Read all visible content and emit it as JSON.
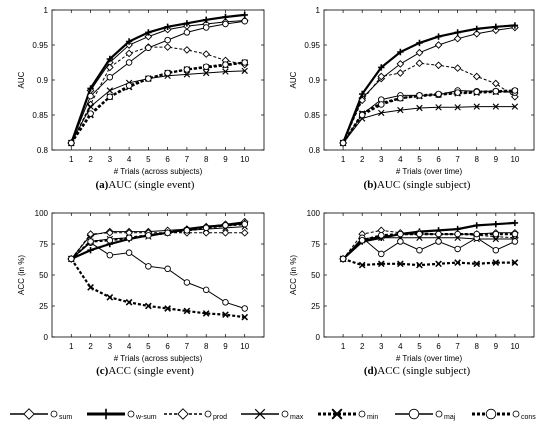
{
  "panels_captions": [
    {
      "letter": "(a)",
      "text": "AUC (single event)"
    },
    {
      "letter": "(b)",
      "text": "AUC (single subject)"
    },
    {
      "letter": "(c)",
      "text": "ACC (single event)"
    },
    {
      "letter": "(d)",
      "text": "ACC (single subject)"
    }
  ],
  "legend": [
    {
      "label": "sum",
      "style": "thin",
      "marker": "diamond"
    },
    {
      "label": "w-sum",
      "style": "thick",
      "marker": "plus"
    },
    {
      "label": "prod",
      "style": "dashed",
      "marker": "diamond"
    },
    {
      "label": "max",
      "style": "thin",
      "marker": "x"
    },
    {
      "label": "min",
      "style": "thick-dashed",
      "marker": "x"
    },
    {
      "label": "maj",
      "style": "thin",
      "marker": "circle"
    },
    {
      "label": "cons",
      "style": "thick-dashed",
      "marker": "circle"
    }
  ],
  "chart_data": [
    {
      "type": "line",
      "xlabel": "# Trials (across subjects)",
      "ylabel": "AUC",
      "x": [
        1,
        2,
        3,
        4,
        5,
        6,
        7,
        8,
        9,
        10
      ],
      "xlim": [
        0,
        11
      ],
      "ylim": [
        0.8,
        1.0
      ],
      "xticks": [
        1,
        2,
        3,
        4,
        5,
        6,
        7,
        8,
        9,
        10
      ],
      "yticks": [
        0.8,
        0.85,
        0.9,
        0.95,
        1
      ],
      "ytick_labels": [
        "0.8",
        "0.85",
        "0.9",
        "0.95",
        "1"
      ],
      "series": [
        {
          "name": "sum",
          "values": [
            0.81,
            0.885,
            0.925,
            0.95,
            0.962,
            0.972,
            0.977,
            0.98,
            0.983,
            0.985
          ]
        },
        {
          "name": "w-sum",
          "values": [
            0.81,
            0.888,
            0.93,
            0.955,
            0.968,
            0.976,
            0.981,
            0.986,
            0.99,
            0.993
          ]
        },
        {
          "name": "prod",
          "values": [
            0.81,
            0.865,
            0.918,
            0.938,
            0.947,
            0.947,
            0.943,
            0.937,
            0.928,
            0.922
          ]
        },
        {
          "name": "max",
          "values": [
            0.81,
            0.862,
            0.885,
            0.896,
            0.902,
            0.906,
            0.908,
            0.91,
            0.912,
            0.913
          ]
        },
        {
          "name": "min",
          "values": [
            0.81,
            0.85,
            0.876,
            0.89,
            0.902,
            0.91,
            0.915,
            0.918,
            0.921,
            0.925
          ]
        },
        {
          "name": "maj",
          "values": [
            0.81,
            0.877,
            0.904,
            0.925,
            0.946,
            0.957,
            0.968,
            0.975,
            0.98,
            0.984
          ]
        },
        {
          "name": "cons",
          "values": [
            0.81,
            0.852,
            0.876,
            0.892,
            0.902,
            0.91,
            0.915,
            0.919,
            0.922,
            0.925
          ]
        }
      ]
    },
    {
      "type": "line",
      "xlabel": "# Trials (over time)",
      "ylabel": "AUC",
      "x": [
        1,
        2,
        3,
        4,
        5,
        6,
        7,
        8,
        9,
        10
      ],
      "xlim": [
        0,
        11
      ],
      "ylim": [
        0.8,
        1.0
      ],
      "xticks": [
        1,
        2,
        3,
        4,
        5,
        6,
        7,
        8,
        9,
        10
      ],
      "yticks": [
        0.8,
        0.85,
        0.9,
        0.95,
        1
      ],
      "ytick_labels": [
        "0.8",
        "0.85",
        "0.9",
        "0.95",
        "1"
      ],
      "series": [
        {
          "name": "sum",
          "values": [
            0.81,
            0.874,
            0.902,
            0.923,
            0.939,
            0.95,
            0.959,
            0.966,
            0.971,
            0.975
          ]
        },
        {
          "name": "w-sum",
          "values": [
            0.81,
            0.88,
            0.918,
            0.94,
            0.953,
            0.962,
            0.968,
            0.973,
            0.976,
            0.978
          ]
        },
        {
          "name": "prod",
          "values": [
            0.81,
            0.871,
            0.905,
            0.91,
            0.924,
            0.921,
            0.917,
            0.905,
            0.895,
            0.876
          ]
        },
        {
          "name": "max",
          "values": [
            0.81,
            0.845,
            0.853,
            0.857,
            0.86,
            0.861,
            0.861,
            0.862,
            0.862,
            0.862
          ]
        },
        {
          "name": "min",
          "values": [
            0.81,
            0.852,
            0.867,
            0.874,
            0.877,
            0.879,
            0.881,
            0.882,
            0.883,
            0.884
          ]
        },
        {
          "name": "maj",
          "values": [
            0.81,
            0.851,
            0.872,
            0.878,
            0.878,
            0.879,
            0.885,
            0.884,
            0.884,
            0.882
          ]
        },
        {
          "name": "cons",
          "values": [
            0.81,
            0.85,
            0.865,
            0.874,
            0.878,
            0.88,
            0.882,
            0.883,
            0.884,
            0.885
          ]
        }
      ]
    },
    {
      "type": "line",
      "xlabel": "# Trials (across subjects)",
      "ylabel": "ACC (in %)",
      "x": [
        1,
        2,
        3,
        4,
        5,
        6,
        7,
        8,
        9,
        10
      ],
      "xlim": [
        0,
        11
      ],
      "ylim": [
        0,
        100
      ],
      "xticks": [
        1,
        2,
        3,
        4,
        5,
        6,
        7,
        8,
        9,
        10
      ],
      "yticks": [
        0,
        25,
        50,
        75,
        100
      ],
      "ytick_labels": [
        "0",
        "25",
        "50",
        "75",
        "100"
      ],
      "series": [
        {
          "name": "sum",
          "values": [
            63,
            82,
            85,
            85,
            85,
            86,
            87,
            89,
            91,
            93
          ]
        },
        {
          "name": "w-sum",
          "values": [
            63,
            70,
            75,
            79,
            82,
            84,
            87,
            89,
            90,
            92
          ]
        },
        {
          "name": "prod",
          "values": [
            63,
            83,
            84,
            84,
            84,
            84,
            84,
            84,
            84,
            84
          ]
        },
        {
          "name": "max",
          "values": [
            63,
            77,
            79,
            80,
            81,
            84,
            86,
            87,
            88,
            89
          ]
        },
        {
          "name": "min",
          "values": [
            63,
            40,
            32,
            28,
            25,
            23,
            21,
            19,
            18,
            16
          ]
        },
        {
          "name": "maj",
          "values": [
            63,
            76,
            66,
            68,
            57,
            55,
            44,
            38,
            28,
            23
          ]
        },
        {
          "name": "cons",
          "values": [
            63,
            77,
            78,
            80,
            82,
            84,
            86,
            88,
            90,
            91
          ]
        }
      ]
    },
    {
      "type": "line",
      "xlabel": "# Trials (over time)",
      "ylabel": "ACC (in %)",
      "x": [
        1,
        2,
        3,
        4,
        5,
        6,
        7,
        8,
        9,
        10
      ],
      "xlim": [
        0,
        11
      ],
      "ylim": [
        0,
        100
      ],
      "xticks": [
        1,
        2,
        3,
        4,
        5,
        6,
        7,
        8,
        9,
        10
      ],
      "yticks": [
        0,
        25,
        50,
        75,
        100
      ],
      "ytick_labels": [
        "0",
        "25",
        "50",
        "75",
        "100"
      ],
      "series": [
        {
          "name": "sum",
          "values": [
            63,
            79,
            81,
            83,
            83,
            83,
            83,
            83,
            84,
            84
          ]
        },
        {
          "name": "w-sum",
          "values": [
            63,
            77,
            80,
            83,
            85,
            86,
            87,
            90,
            91,
            92
          ]
        },
        {
          "name": "prod",
          "values": [
            63,
            83,
            86,
            84,
            84,
            83,
            83,
            82,
            81,
            80
          ]
        },
        {
          "name": "max",
          "values": [
            63,
            78,
            80,
            80,
            80,
            80,
            80,
            79,
            79,
            79
          ]
        },
        {
          "name": "min",
          "values": [
            63,
            58,
            59,
            59,
            58,
            59,
            60,
            59,
            60,
            60
          ]
        },
        {
          "name": "maj",
          "values": [
            63,
            80,
            67,
            77,
            70,
            77,
            71,
            80,
            70,
            77
          ]
        },
        {
          "name": "cons",
          "values": [
            63,
            78,
            82,
            83,
            83,
            83,
            83,
            83,
            83,
            83
          ]
        }
      ]
    }
  ]
}
